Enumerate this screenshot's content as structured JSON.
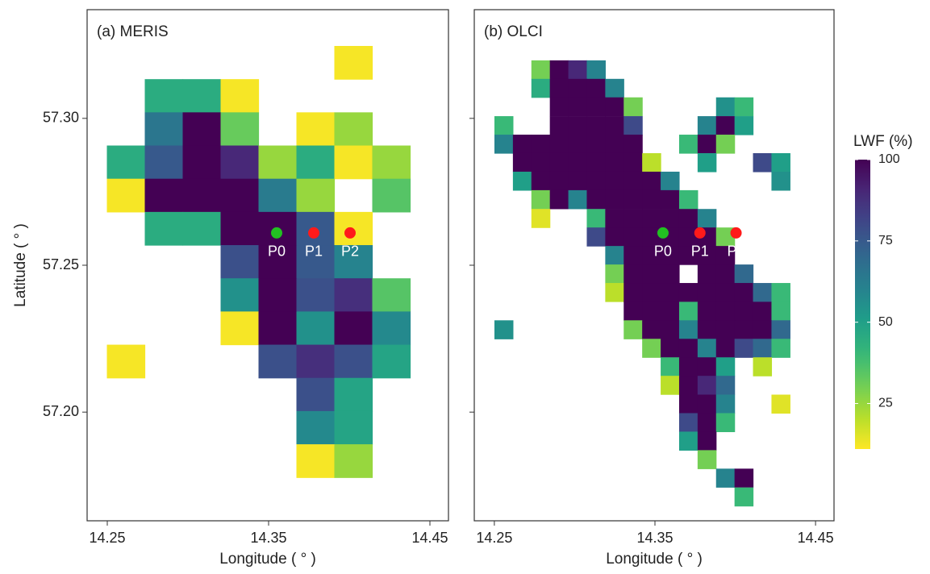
{
  "chart_data": [
    {
      "type": "heatmap",
      "title": "(a) MERIS",
      "xlabel": "Longitude ( ° )",
      "ylabel": "Latitude ( ° )",
      "xlim": [
        14.2375,
        14.4615
      ],
      "ylim": [
        57.163,
        57.337
      ],
      "xticks": [
        14.25,
        14.35,
        14.45
      ],
      "yticks": [
        {
          "value": 57.3,
          "label": "57.30"
        },
        57.25,
        {
          "value": 57.2,
          "label": "57.20"
        }
      ],
      "show_ytick_labels": true,
      "x": [
        14.2615,
        14.285,
        14.3085,
        14.332,
        14.3555,
        14.379,
        14.4025,
        14.426
      ],
      "y": [
        57.319,
        57.3077,
        57.2964,
        57.2851,
        57.2738,
        57.2625,
        57.2512,
        57.2399,
        57.2286,
        57.2173,
        57.206,
        57.1947,
        57.1834
      ],
      "z": [
        [
          null,
          null,
          null,
          null,
          null,
          null,
          12,
          null
        ],
        [
          null,
          45,
          45,
          12,
          null,
          null,
          null,
          null
        ],
        [
          null,
          65,
          100,
          32,
          null,
          12,
          25,
          null
        ],
        [
          45,
          75,
          100,
          90,
          25,
          45,
          12,
          25
        ],
        [
          12,
          100,
          100,
          100,
          63,
          25,
          null,
          35
        ],
        [
          null,
          45,
          45,
          100,
          100,
          75,
          12,
          null
        ],
        [
          null,
          null,
          null,
          78,
          100,
          75,
          60,
          null
        ],
        [
          null,
          null,
          null,
          55,
          100,
          78,
          88,
          35
        ],
        [
          null,
          null,
          null,
          12,
          100,
          55,
          100,
          58
        ],
        [
          12,
          null,
          null,
          null,
          78,
          88,
          78,
          48
        ],
        [
          null,
          null,
          null,
          null,
          null,
          78,
          48,
          null
        ],
        [
          null,
          null,
          null,
          null,
          null,
          58,
          48,
          null
        ],
        [
          null,
          null,
          null,
          null,
          null,
          12,
          25,
          null
        ]
      ],
      "points": [
        {
          "name": "P0",
          "lon": 14.355,
          "lat": 57.261,
          "color": "#22c022"
        },
        {
          "name": "P1",
          "lon": 14.378,
          "lat": 57.261,
          "color": "#ff1a1a"
        },
        {
          "name": "P2",
          "lon": 14.4005,
          "lat": 57.261,
          "color": "#ff1a1a"
        }
      ]
    },
    {
      "type": "heatmap",
      "title": "(b) OLCI",
      "xlabel": "Longitude ( ° )",
      "xlim": [
        14.2375,
        14.4615
      ],
      "ylim": [
        57.163,
        57.337
      ],
      "xticks": [
        14.25,
        14.35,
        14.45
      ],
      "yticks": [
        57.3,
        57.25,
        57.2
      ],
      "show_ytick_labels": false,
      "x": [
        14.2558,
        14.2673,
        14.2788,
        14.2903,
        14.3018,
        14.3133,
        14.3248,
        14.3363,
        14.3478,
        14.3593,
        14.3708,
        14.3823,
        14.3938,
        14.4053,
        14.4168,
        14.4283
      ],
      "y": [
        57.3166,
        57.3103,
        57.304,
        57.2976,
        57.2913,
        57.285,
        57.2787,
        57.2724,
        57.266,
        57.2597,
        57.2534,
        57.2471,
        57.2408,
        57.2344,
        57.2281,
        57.2218,
        57.2155,
        57.2092,
        57.2028,
        57.1965,
        57.1902,
        57.1839,
        57.1776,
        57.1712
      ],
      "z": [
        [
          null,
          null,
          30,
          100,
          90,
          60,
          null,
          null,
          null,
          null,
          null,
          null,
          null,
          null,
          null,
          null
        ],
        [
          null,
          null,
          45,
          100,
          100,
          100,
          60,
          null,
          null,
          null,
          null,
          null,
          null,
          null,
          null,
          null
        ],
        [
          null,
          null,
          null,
          100,
          100,
          100,
          100,
          30,
          null,
          null,
          null,
          null,
          55,
          40,
          null,
          null
        ],
        [
          40,
          null,
          null,
          100,
          100,
          100,
          100,
          80,
          null,
          null,
          null,
          60,
          100,
          50,
          null,
          null
        ],
        [
          60,
          100,
          100,
          100,
          100,
          100,
          100,
          100,
          null,
          null,
          40,
          100,
          30,
          null,
          null,
          null
        ],
        [
          null,
          100,
          100,
          100,
          100,
          100,
          100,
          100,
          20,
          null,
          null,
          50,
          null,
          null,
          80,
          50
        ],
        [
          null,
          50,
          100,
          100,
          100,
          100,
          100,
          100,
          100,
          60,
          null,
          null,
          null,
          null,
          null,
          55
        ],
        [
          null,
          null,
          30,
          100,
          60,
          100,
          100,
          100,
          100,
          100,
          40,
          null,
          null,
          null,
          null,
          null
        ],
        [
          null,
          null,
          15,
          null,
          null,
          40,
          100,
          100,
          100,
          100,
          100,
          60,
          null,
          null,
          null,
          null
        ],
        [
          null,
          null,
          null,
          null,
          null,
          80,
          100,
          100,
          100,
          100,
          100,
          100,
          30,
          null,
          null,
          null
        ],
        [
          null,
          null,
          null,
          null,
          null,
          null,
          60,
          100,
          100,
          100,
          100,
          100,
          100,
          null,
          null,
          null
        ],
        [
          null,
          null,
          null,
          null,
          null,
          null,
          30,
          100,
          100,
          100,
          null,
          100,
          100,
          70,
          null,
          null
        ],
        [
          null,
          null,
          null,
          null,
          null,
          null,
          20,
          100,
          100,
          100,
          100,
          100,
          100,
          100,
          70,
          40
        ],
        [
          null,
          null,
          null,
          null,
          null,
          null,
          null,
          100,
          100,
          100,
          40,
          100,
          100,
          100,
          100,
          40
        ],
        [
          55,
          null,
          null,
          null,
          null,
          null,
          null,
          30,
          100,
          100,
          60,
          100,
          100,
          100,
          100,
          70
        ],
        [
          null,
          null,
          null,
          null,
          null,
          null,
          null,
          null,
          30,
          100,
          100,
          60,
          100,
          80,
          70,
          40
        ],
        [
          null,
          null,
          null,
          null,
          null,
          null,
          null,
          null,
          null,
          40,
          100,
          100,
          50,
          null,
          20,
          null
        ],
        [
          null,
          null,
          null,
          null,
          null,
          null,
          null,
          null,
          null,
          20,
          100,
          90,
          70,
          null,
          null,
          null
        ],
        [
          null,
          null,
          null,
          null,
          null,
          null,
          null,
          null,
          null,
          null,
          100,
          100,
          60,
          null,
          null,
          15
        ],
        [
          null,
          null,
          null,
          null,
          null,
          null,
          null,
          null,
          null,
          null,
          80,
          100,
          40,
          null,
          null,
          null
        ],
        [
          null,
          null,
          null,
          null,
          null,
          null,
          null,
          null,
          null,
          null,
          50,
          100,
          null,
          null,
          null,
          null
        ],
        [
          null,
          null,
          null,
          null,
          null,
          null,
          null,
          null,
          null,
          null,
          null,
          30,
          null,
          null,
          null,
          null
        ],
        [
          null,
          null,
          null,
          null,
          null,
          null,
          null,
          null,
          null,
          null,
          null,
          null,
          60,
          100,
          null,
          null
        ],
        [
          null,
          null,
          null,
          null,
          null,
          null,
          null,
          null,
          null,
          null,
          null,
          null,
          null,
          40,
          null,
          null
        ]
      ],
      "points": [
        {
          "name": "P0",
          "lon": 14.355,
          "lat": 57.261,
          "color": "#22c022"
        },
        {
          "name": "P1",
          "lon": 14.378,
          "lat": 57.261,
          "color": "#ff1a1a"
        },
        {
          "name": "P2",
          "lon": 14.4005,
          "lat": 57.261,
          "color": "#ff1a1a"
        }
      ]
    }
  ],
  "colorbar": {
    "title": "LWF (%)",
    "lim": [
      11,
      100
    ],
    "ticks": [
      25,
      50,
      75,
      100
    ],
    "palette": "viridis",
    "reversed": true
  }
}
